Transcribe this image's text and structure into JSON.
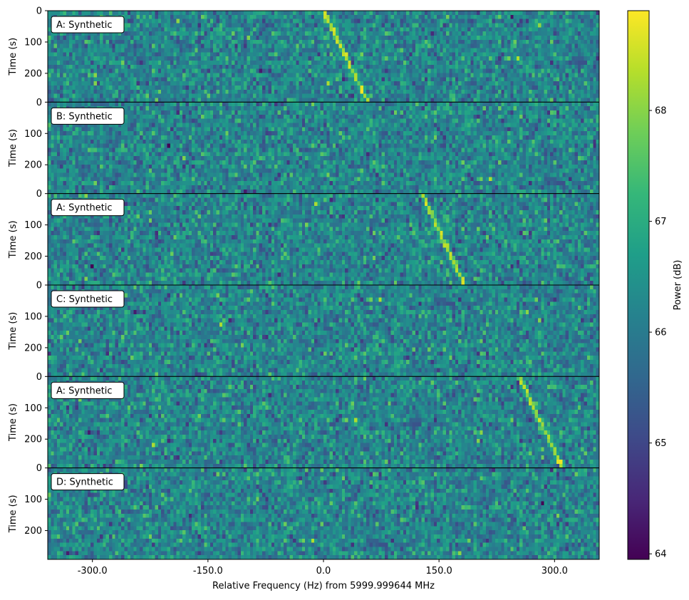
{
  "chart_data": {
    "type": "heatmap",
    "subtype": "waterfall-stack",
    "xlabel": "Relative Frequency (Hz) from 5999.999644 MHz",
    "xlim": [
      -358,
      358
    ],
    "xticks": [
      -300,
      -150,
      0,
      150,
      300
    ],
    "xtick_labels": [
      "-300.0",
      "-150.0",
      "0.0",
      "150.0",
      "300.0"
    ],
    "ylabel": "Time (s)",
    "ylim": [
      0,
      292
    ],
    "yticks": [
      0,
      100,
      200
    ],
    "yticks_top_panel": [
      0,
      100,
      200
    ],
    "y_inverted": true,
    "colormap": "viridis",
    "colorbar": {
      "label": "Power (dB)",
      "range": [
        63.95,
        68.9
      ],
      "ticks": [
        64,
        65,
        66,
        67,
        68
      ],
      "tick_labels": [
        "64",
        "65",
        "66",
        "67",
        "68"
      ]
    },
    "noise": {
      "mean_db": 66.2,
      "std_db": 0.55
    },
    "panels": [
      {
        "label": "A: Synthetic",
        "signal": {
          "start_hz": 0,
          "end_hz": 58,
          "power_db": 68.3
        }
      },
      {
        "label": "B: Synthetic",
        "signal": null
      },
      {
        "label": "A: Synthetic",
        "signal": {
          "start_hz": 128,
          "end_hz": 183,
          "power_db": 68.3
        }
      },
      {
        "label": "C: Synthetic",
        "signal": null
      },
      {
        "label": "A: Synthetic",
        "signal": {
          "start_hz": 254,
          "end_hz": 310,
          "power_db": 68.3
        }
      },
      {
        "label": "D: Synthetic",
        "signal": null
      }
    ]
  },
  "colors": {
    "viridis_stops": [
      "#440154",
      "#482878",
      "#3e4a89",
      "#31688e",
      "#26828e",
      "#1f9e89",
      "#35b779",
      "#6ece58",
      "#b5de2b",
      "#fde725"
    ],
    "frame": "#000000",
    "label_box_bg": "#ffffff"
  }
}
